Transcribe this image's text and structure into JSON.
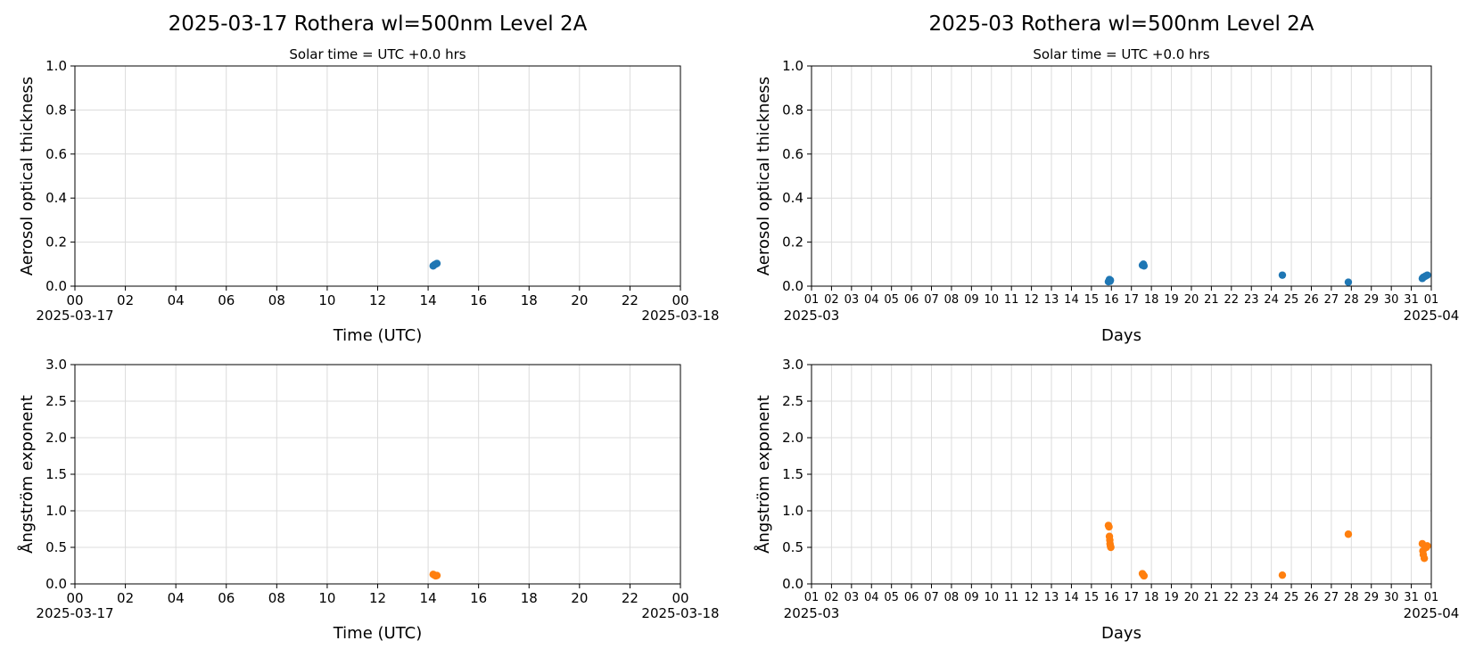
{
  "colors": {
    "aot": "#1f77b4",
    "angstrom": "#ff7f0e",
    "grid": "#dcdcdc"
  },
  "chart_data": [
    {
      "type": "scatter",
      "title": "2025-03-17  Rothera  wl=500nm  Level 2A",
      "subtitle": "Solar time = UTC +0.0 hrs",
      "xlabel": "Time (UTC)",
      "ylabel": "Aerosol optical thickness",
      "xlim": [
        0,
        24
      ],
      "ylim": [
        0,
        1.0
      ],
      "x_ticks": [
        "00",
        "02",
        "04",
        "06",
        "08",
        "10",
        "12",
        "14",
        "16",
        "18",
        "20",
        "22",
        "00"
      ],
      "x_start_label": "2025-03-17",
      "x_end_label": "2025-03-18",
      "y_ticks": [
        "0.0",
        "0.2",
        "0.4",
        "0.6",
        "0.8",
        "1.0"
      ],
      "grid": true,
      "series": [
        {
          "x": [
            14.2,
            14.25,
            14.3,
            14.35
          ],
          "y": [
            0.092,
            0.097,
            0.1,
            0.103
          ]
        }
      ]
    },
    {
      "type": "scatter",
      "title": "2025-03  Rothera  wl=500nm  Level 2A",
      "subtitle": "Solar time = UTC +0.0 hrs",
      "xlabel": "Days",
      "ylabel": "Aerosol optical thickness",
      "xlim": [
        1,
        32
      ],
      "ylim": [
        0,
        1.0
      ],
      "x_ticks": [
        "01",
        "02",
        "03",
        "04",
        "05",
        "06",
        "07",
        "08",
        "09",
        "10",
        "11",
        "12",
        "13",
        "14",
        "15",
        "16",
        "17",
        "18",
        "19",
        "20",
        "21",
        "22",
        "23",
        "24",
        "25",
        "26",
        "27",
        "28",
        "29",
        "30",
        "31",
        "01"
      ],
      "x_start_label": "2025-03",
      "x_end_label": "2025-04",
      "y_ticks": [
        "0.0",
        "0.2",
        "0.4",
        "0.6",
        "0.8",
        "1.0"
      ],
      "grid": true,
      "series": [
        {
          "x": [
            15.85,
            15.88,
            15.9,
            15.93,
            15.95,
            17.55,
            17.6,
            17.63,
            24.55,
            27.85,
            31.55,
            31.6,
            31.7,
            31.8
          ],
          "y": [
            0.02,
            0.025,
            0.03,
            0.022,
            0.027,
            0.095,
            0.1,
            0.092,
            0.05,
            0.018,
            0.035,
            0.04,
            0.045,
            0.05
          ]
        }
      ]
    },
    {
      "type": "scatter",
      "xlabel": "Time (UTC)",
      "ylabel": "Ångström exponent",
      "xlim": [
        0,
        24
      ],
      "ylim": [
        0,
        3.0
      ],
      "x_ticks": [
        "00",
        "02",
        "04",
        "06",
        "08",
        "10",
        "12",
        "14",
        "16",
        "18",
        "20",
        "22",
        "00"
      ],
      "x_start_label": "2025-03-17",
      "x_end_label": "2025-03-18",
      "y_ticks": [
        "0.0",
        "0.5",
        "1.0",
        "1.5",
        "2.0",
        "2.5",
        "3.0"
      ],
      "grid": true,
      "series": [
        {
          "x": [
            14.2,
            14.25,
            14.3,
            14.35
          ],
          "y": [
            0.13,
            0.12,
            0.11,
            0.115
          ]
        }
      ]
    },
    {
      "type": "scatter",
      "xlabel": "Days",
      "ylabel": "Ångström exponent",
      "xlim": [
        1,
        32
      ],
      "ylim": [
        0,
        3.0
      ],
      "x_ticks": [
        "01",
        "02",
        "03",
        "04",
        "05",
        "06",
        "07",
        "08",
        "09",
        "10",
        "11",
        "12",
        "13",
        "14",
        "15",
        "16",
        "17",
        "18",
        "19",
        "20",
        "21",
        "22",
        "23",
        "24",
        "25",
        "26",
        "27",
        "28",
        "29",
        "30",
        "31",
        "01"
      ],
      "x_start_label": "2025-03",
      "x_end_label": "2025-04",
      "y_ticks": [
        "0.0",
        "0.5",
        "1.0",
        "1.5",
        "2.0",
        "2.5",
        "3.0"
      ],
      "grid": true,
      "series": [
        {
          "x": [
            15.85,
            15.88,
            15.9,
            15.92,
            15.93,
            15.95,
            15.97,
            17.55,
            17.6,
            17.63,
            24.55,
            27.85,
            31.55,
            31.58,
            31.6,
            31.65,
            31.75,
            31.8
          ],
          "y": [
            0.8,
            0.78,
            0.65,
            0.6,
            0.55,
            0.52,
            0.5,
            0.14,
            0.12,
            0.11,
            0.12,
            0.68,
            0.55,
            0.45,
            0.4,
            0.35,
            0.5,
            0.52
          ]
        }
      ]
    }
  ]
}
